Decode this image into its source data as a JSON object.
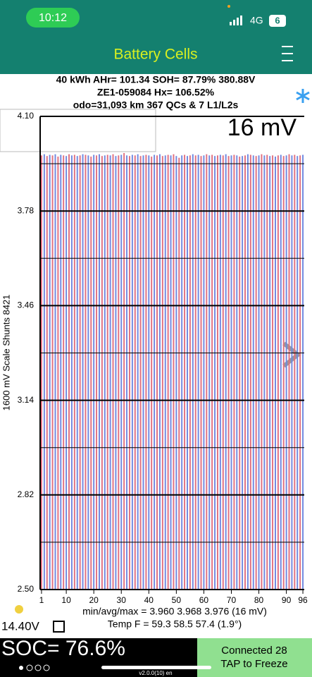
{
  "status": {
    "time": "10:12",
    "network": "4G",
    "battery": "6"
  },
  "header": {
    "title": "Battery Cells"
  },
  "info": [
    "40 kWh  AHr= 101.34  SOH= 87.79%   380.88V",
    "ZE1-059084   Hx= 106.52%",
    "odo=31,093 km 367 QCs & 7 L1/L2s"
  ],
  "chart_data": {
    "type": "bar",
    "annotation": "16 mV",
    "y_label": "1600 mV Scale   Shunts 8421",
    "x": [
      1,
      2,
      3,
      4,
      5,
      6,
      7,
      8,
      9,
      10,
      11,
      12,
      13,
      14,
      15,
      16,
      17,
      18,
      19,
      20,
      21,
      22,
      23,
      24,
      25,
      26,
      27,
      28,
      29,
      30,
      31,
      32,
      33,
      34,
      35,
      36,
      37,
      38,
      39,
      40,
      41,
      42,
      43,
      44,
      45,
      46,
      47,
      48,
      49,
      50,
      51,
      52,
      53,
      54,
      55,
      56,
      57,
      58,
      59,
      60,
      61,
      62,
      63,
      64,
      65,
      66,
      67,
      68,
      69,
      70,
      71,
      72,
      73,
      74,
      75,
      76,
      77,
      78,
      79,
      80,
      81,
      82,
      83,
      84,
      85,
      86,
      87,
      88,
      89,
      90,
      91,
      92,
      93,
      94,
      95,
      96
    ],
    "values": [
      3.968,
      3.972,
      3.966,
      3.97,
      3.968,
      3.972,
      3.964,
      3.97,
      3.968,
      3.966,
      3.972,
      3.968,
      3.97,
      3.966,
      3.968,
      3.972,
      3.97,
      3.968,
      3.964,
      3.97,
      3.968,
      3.972,
      3.966,
      3.968,
      3.97,
      3.968,
      3.972,
      3.966,
      3.968,
      3.97,
      3.976,
      3.968,
      3.966,
      3.97,
      3.968,
      3.972,
      3.966,
      3.968,
      3.97,
      3.968,
      3.964,
      3.97,
      3.968,
      3.972,
      3.966,
      3.968,
      3.97,
      3.968,
      3.972,
      3.966,
      3.96,
      3.968,
      3.97,
      3.966,
      3.968,
      3.972,
      3.968,
      3.97,
      3.966,
      3.968,
      3.972,
      3.968,
      3.97,
      3.966,
      3.968,
      3.97,
      3.968,
      3.972,
      3.966,
      3.968,
      3.97,
      3.968,
      3.964,
      3.966,
      3.968,
      3.972,
      3.97,
      3.968,
      3.966,
      3.968,
      3.972,
      3.968,
      3.97,
      3.966,
      3.968,
      3.964,
      3.968,
      3.97,
      3.966,
      3.968,
      3.972,
      3.968,
      3.97,
      3.966,
      3.968,
      3.97
    ],
    "bar_colors": [
      "#e07080",
      "#7088e0"
    ],
    "xlim": [
      0.5,
      96.5
    ],
    "xticks": [
      1,
      10,
      20,
      30,
      40,
      50,
      60,
      70,
      80,
      90,
      96
    ],
    "ylim": [
      2.5,
      4.1
    ],
    "yticks": [
      {
        "value": 2.5,
        "label": "2.50"
      },
      2.82,
      3.14,
      3.46,
      3.78,
      {
        "value": 4.1,
        "label": "4.10"
      }
    ],
    "grid": true
  },
  "summary": [
    "min/avg/max = 3.960 3.968 3.976  (16 mV)",
    "Temp F = 59.3  58.5  57.4  (1.9°)"
  ],
  "footer": {
    "voltage": "14.40V",
    "soc": "SOC= 76.6%",
    "connected": "Connected 28",
    "tap": "TAP to Freeze",
    "version": "v2.0.0(10) en"
  }
}
